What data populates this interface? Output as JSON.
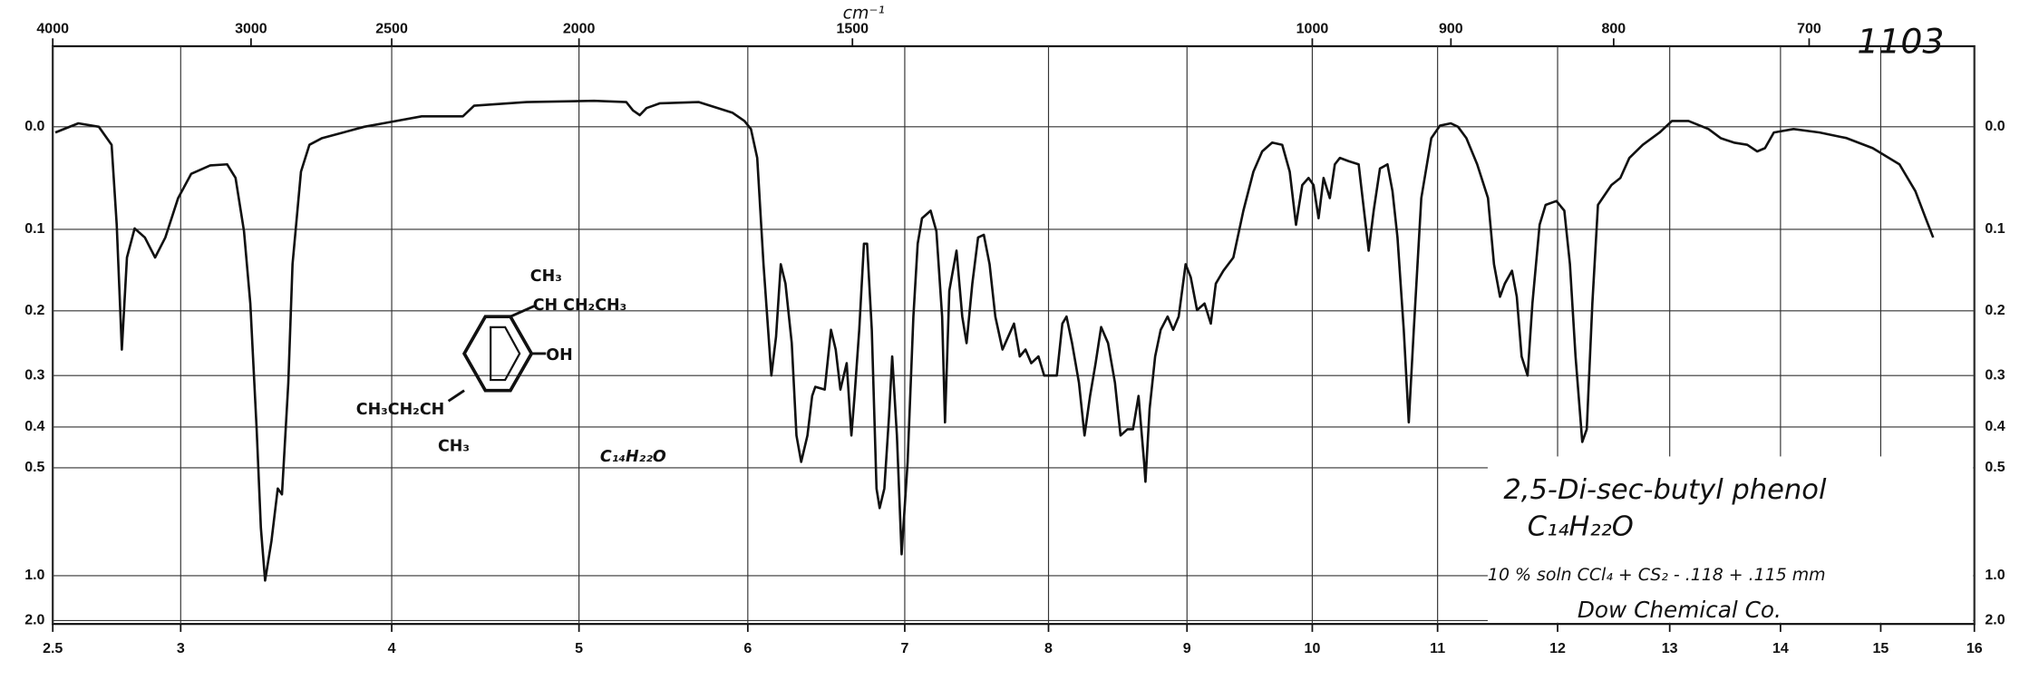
{
  "chart_data": {
    "type": "line",
    "x_unit_note": null,
    "x2label": "cm⁻¹",
    "x": [
      2.51,
      2.6,
      2.68,
      2.73,
      2.75,
      2.77,
      2.79,
      2.82,
      2.86,
      2.9,
      2.94,
      2.99,
      3.05,
      3.14,
      3.22,
      3.26,
      3.3,
      3.33,
      3.36,
      3.38,
      3.4,
      3.43,
      3.46,
      3.48,
      3.51,
      3.53,
      3.57,
      3.61,
      3.67,
      3.77,
      3.87,
      3.96,
      4.16,
      4.38,
      4.44,
      4.72,
      5.09,
      5.28,
      5.32,
      5.36,
      5.4,
      5.48,
      5.71,
      5.91,
      5.98,
      6.02,
      6.06,
      6.1,
      6.15,
      6.18,
      6.21,
      6.24,
      6.28,
      6.31,
      6.34,
      6.38,
      6.41,
      6.43,
      6.49,
      6.53,
      6.56,
      6.59,
      6.63,
      6.66,
      6.68,
      6.71,
      6.74,
      6.76,
      6.79,
      6.82,
      6.84,
      6.87,
      6.9,
      6.92,
      6.95,
      6.98,
      7.02,
      7.06,
      7.09,
      7.12,
      7.18,
      7.22,
      7.26,
      7.28,
      7.31,
      7.36,
      7.4,
      7.43,
      7.47,
      7.51,
      7.55,
      7.59,
      7.63,
      7.68,
      7.72,
      7.76,
      7.8,
      7.84,
      7.88,
      7.93,
      7.97,
      8.06,
      8.1,
      8.13,
      8.17,
      8.22,
      8.26,
      8.3,
      8.34,
      8.38,
      8.43,
      8.48,
      8.52,
      8.57,
      8.61,
      8.65,
      8.69,
      8.7,
      8.73,
      8.77,
      8.81,
      8.86,
      8.9,
      8.94,
      8.99,
      9.03,
      9.08,
      9.14,
      9.19,
      9.23,
      9.29,
      9.37,
      9.45,
      9.53,
      9.6,
      9.68,
      9.76,
      9.82,
      9.87,
      9.92,
      9.97,
      10.01,
      10.05,
      10.09,
      10.14,
      10.18,
      10.22,
      10.29,
      10.37,
      10.42,
      10.45,
      10.49,
      10.54,
      10.6,
      10.64,
      10.68,
      10.73,
      10.77,
      10.81,
      10.87,
      10.95,
      11.02,
      11.11,
      11.17,
      11.24,
      11.33,
      11.42,
      11.47,
      11.52,
      11.56,
      11.62,
      11.66,
      11.7,
      11.75,
      11.79,
      11.85,
      11.9,
      11.99,
      12.06,
      12.11,
      12.16,
      12.22,
      12.26,
      12.31,
      12.36,
      12.48,
      12.56,
      12.64,
      12.76,
      12.91,
      13.02,
      13.17,
      13.35,
      13.46,
      13.58,
      13.7,
      13.79,
      13.86,
      13.94,
      14.13,
      14.39,
      14.66,
      14.92,
      15.2,
      15.37,
      15.48,
      15.56
    ],
    "values": [
      0.005,
      -0.003,
      0,
      0.016,
      0.095,
      0.257,
      0.132,
      0.099,
      0.109,
      0.132,
      0.109,
      0.067,
      0.043,
      0.035,
      0.034,
      0.047,
      0.102,
      0.19,
      0.405,
      0.708,
      1.045,
      0.772,
      0.561,
      0.58,
      0.313,
      0.14,
      0.041,
      0.016,
      0.01,
      0.005,
      0,
      -0.003,
      -0.009,
      -0.009,
      -0.018,
      -0.021,
      -0.022,
      -0.021,
      -0.014,
      -0.01,
      -0.016,
      -0.02,
      -0.021,
      -0.012,
      -0.005,
      0.002,
      0.028,
      0.14,
      0.3,
      0.237,
      0.14,
      0.164,
      0.247,
      0.419,
      0.484,
      0.419,
      0.337,
      0.32,
      0.325,
      0.227,
      0.257,
      0.325,
      0.279,
      0.419,
      0.337,
      0.227,
      0.116,
      0.116,
      0.227,
      0.561,
      0.628,
      0.561,
      0.376,
      0.268,
      0.419,
      0.845,
      0.484,
      0.208,
      0.116,
      0.088,
      0.08,
      0.102,
      0.208,
      0.39,
      0.173,
      0.124,
      0.208,
      0.247,
      0.164,
      0.109,
      0.106,
      0.14,
      0.208,
      0.257,
      0.237,
      0.218,
      0.268,
      0.257,
      0.279,
      0.268,
      0.3,
      0.3,
      0.218,
      0.208,
      0.247,
      0.313,
      0.419,
      0.337,
      0.279,
      0.223,
      0.247,
      0.313,
      0.419,
      0.405,
      0.405,
      0.337,
      0.484,
      0.54,
      0.362,
      0.268,
      0.227,
      0.208,
      0.227,
      0.208,
      0.14,
      0.156,
      0.199,
      0.19,
      0.218,
      0.164,
      0.148,
      0.132,
      0.08,
      0.041,
      0.022,
      0.014,
      0.016,
      0.041,
      0.095,
      0.054,
      0.047,
      0.054,
      0.088,
      0.047,
      0.067,
      0.034,
      0.028,
      0.031,
      0.034,
      0.088,
      0.124,
      0.08,
      0.038,
      0.034,
      0.06,
      0.109,
      0.227,
      0.39,
      0.227,
      0.067,
      0.01,
      -0.001,
      -0.003,
      0,
      0.01,
      0.034,
      0.067,
      0.14,
      0.181,
      0.164,
      0.148,
      0.181,
      0.268,
      0.3,
      0.19,
      0.095,
      0.074,
      0.07,
      0.08,
      0.14,
      0.268,
      0.434,
      0.405,
      0.19,
      0.074,
      0.054,
      0.047,
      0.028,
      0.016,
      0.005,
      -0.005,
      -0.005,
      0.002,
      0.01,
      0.014,
      0.016,
      0.022,
      0.019,
      0.005,
      0.002,
      0.005,
      0.01,
      0.019,
      0.034,
      0.06,
      0.088,
      0.109
    ],
    "color": "#111111",
    "xlim": [
      2.5,
      16
    ],
    "xticks": [
      2.5,
      3,
      4,
      5,
      6,
      7,
      8,
      9,
      10,
      11,
      12,
      13,
      14,
      15,
      16
    ],
    "x2ticks": [
      4000,
      3000,
      2500,
      2000,
      1500,
      1000,
      900,
      800,
      700
    ],
    "ylim": [
      -0.065,
      2.5
    ],
    "yscale": "absorbance",
    "yticks": [
      {
        "value": 0,
        "label": "0.0"
      },
      0.1,
      0.2,
      0.3,
      0.4,
      0.5,
      {
        "value": 1,
        "label": "1.0"
      },
      {
        "value": 2,
        "label": "2.0"
      }
    ],
    "grid": true,
    "annotations": {
      "sample_id": "1103",
      "compound": "2,5-Di-sec-butyl phenol",
      "formula": "C₁₄H₂₂O",
      "conditions": "10 % soln  CCl₄ + CS₂ - .118 + .115 mm",
      "source": "Dow Chemical Co.",
      "struct_ch3_top": "CH₃",
      "struct_side_top": "CH CH₂CH₃",
      "struct_oh": "OH",
      "struct_side_bottom": "CH₃CH₂CH",
      "struct_ch3_bottom": "CH₃",
      "struct_formula": "C₁₄H₂₂O"
    }
  }
}
